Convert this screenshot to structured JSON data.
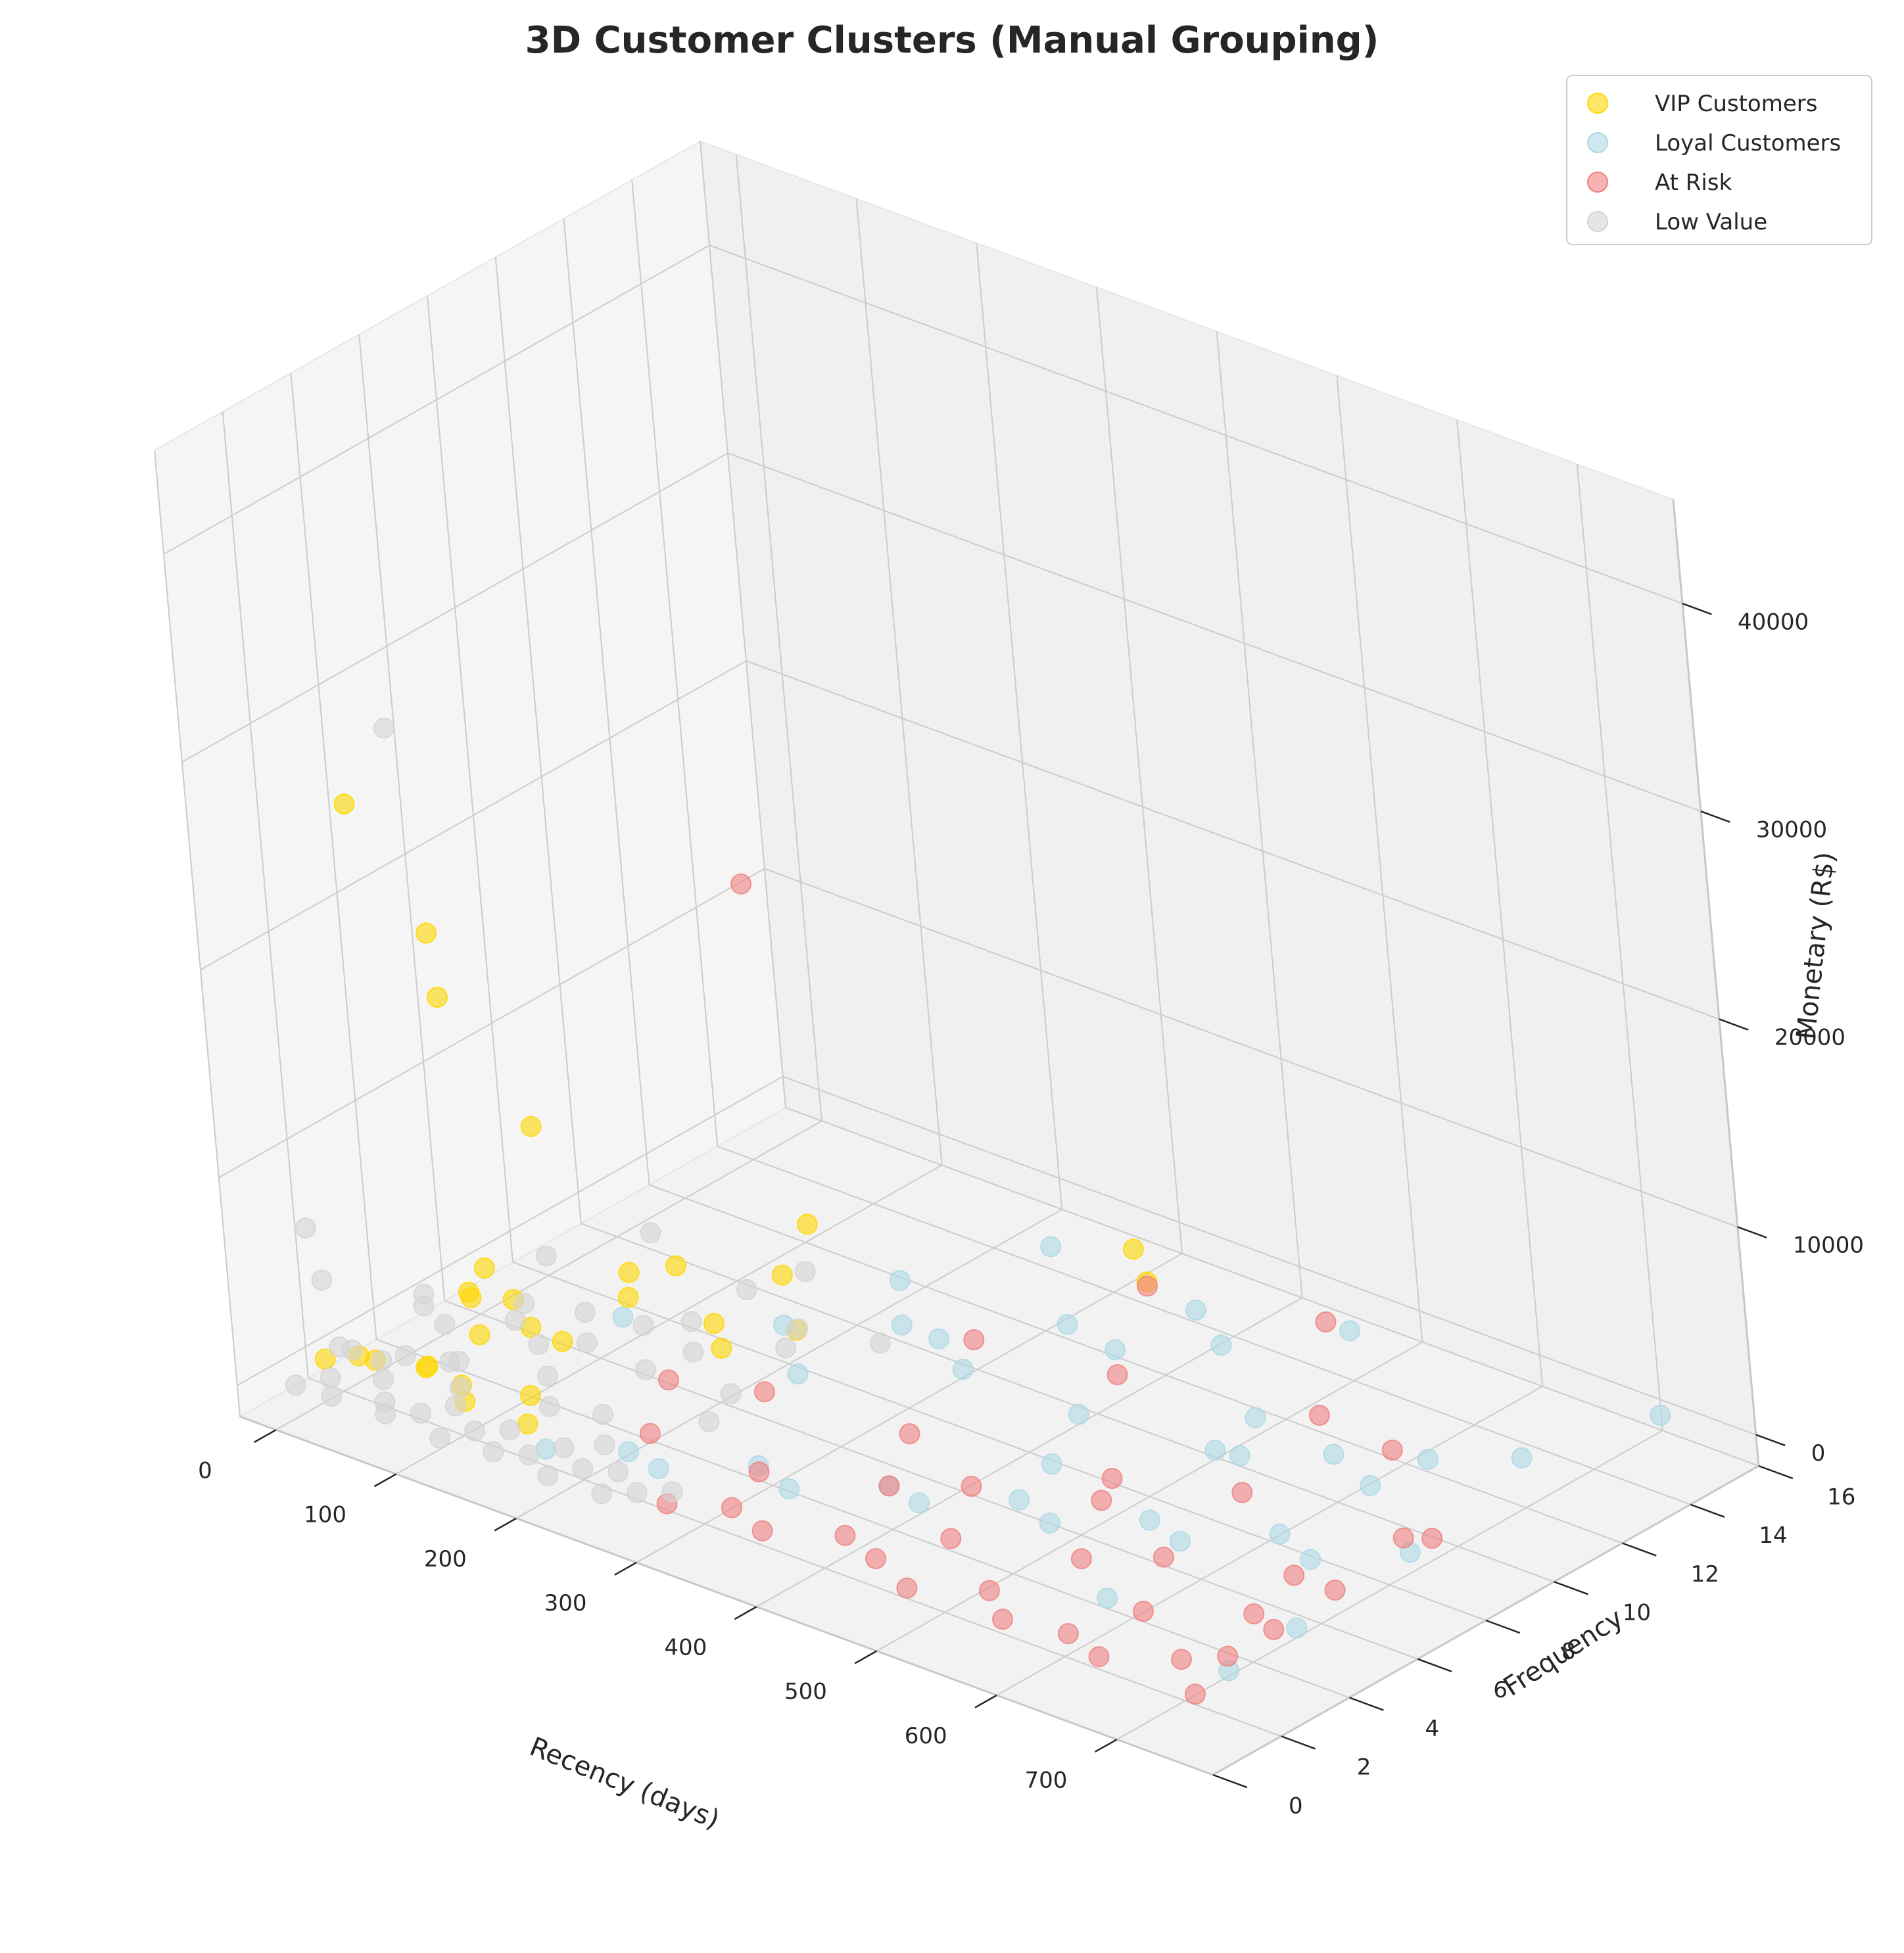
{
  "chart_data": {
    "type": "scatter",
    "projection": "3d",
    "title": "3D Customer Clusters (Manual Grouping)",
    "xlabel": "Recency (days)",
    "ylabel": "Frequency",
    "zlabel": "Monetary (R$)",
    "xlim": [
      -30,
      780
    ],
    "ylim": [
      0,
      16
    ],
    "zlim": [
      -1500,
      45000
    ],
    "x_ticks": [
      "0",
      "100",
      "200",
      "300",
      "400",
      "500",
      "600",
      "700"
    ],
    "y_ticks": [
      "0",
      "2",
      "4",
      "6",
      "8",
      "10",
      "12",
      "14",
      "16"
    ],
    "z_ticks": [
      "0",
      "10000",
      "20000",
      "30000",
      "40000"
    ],
    "grid": true,
    "legend_position": "top-right",
    "series": [
      {
        "name": "VIP Customers",
        "color": "#FFD700",
        "points": [
          [
            20,
            0.9,
            1500
          ],
          [
            40,
            1.2,
            1800
          ],
          [
            60,
            1.0,
            2200
          ],
          [
            80,
            1.8,
            1600
          ],
          [
            100,
            1.1,
            2600
          ],
          [
            120,
            1.4,
            1900
          ],
          [
            140,
            0.8,
            2100
          ],
          [
            160,
            2.0,
            1700
          ],
          [
            180,
            1.2,
            1500
          ],
          [
            90,
            3.0,
            2200
          ],
          [
            130,
            4.0,
            1800
          ],
          [
            60,
            5.0,
            1400
          ],
          [
            200,
            6.0,
            2300
          ],
          [
            100,
            7.0,
            1700
          ],
          [
            150,
            2.5,
            4300
          ],
          [
            110,
            8.0,
            1300
          ],
          [
            220,
            5.5,
            2000
          ],
          [
            70,
            3.5,
            3100
          ],
          [
            170,
            9.0,
            1200
          ],
          [
            240,
            7.0,
            1900
          ],
          [
            130,
            2.0,
            7200
          ],
          [
            150,
            3.0,
            13500
          ],
          [
            110,
            2.0,
            19800
          ],
          [
            130,
            1.5,
            6500
          ],
          [
            320,
            14.0,
            1000
          ],
          [
            360,
            13.0,
            1200
          ],
          [
            60,
            1.5,
            28500
          ],
          [
            90,
            2.5,
            22000
          ],
          [
            190,
            4.0,
            5200
          ],
          [
            180,
            9.5,
            3400
          ]
        ]
      },
      {
        "name": "Loyal Customers",
        "color": "#ADD8E6",
        "points": [
          [
            200,
            1.0,
            900
          ],
          [
            240,
            2.0,
            700
          ],
          [
            280,
            1.5,
            1200
          ],
          [
            320,
            3.0,
            800
          ],
          [
            360,
            2.5,
            1000
          ],
          [
            400,
            4.0,
            600
          ],
          [
            440,
            3.5,
            1100
          ],
          [
            480,
            5.0,
            700
          ],
          [
            520,
            4.5,
            900
          ],
          [
            560,
            6.0,
            500
          ],
          [
            600,
            5.5,
            800
          ],
          [
            640,
            7.0,
            600
          ],
          [
            680,
            6.5,
            700
          ],
          [
            720,
            8.0,
            500
          ],
          [
            300,
            9.0,
            900
          ],
          [
            350,
            11.0,
            800
          ],
          [
            400,
            13.0,
            700
          ],
          [
            450,
            12.0,
            1000
          ],
          [
            500,
            14.0,
            900
          ],
          [
            550,
            9.0,
            600
          ],
          [
            600,
            10.0,
            800
          ],
          [
            650,
            11.0,
            700
          ],
          [
            700,
            12.0,
            900
          ],
          [
            740,
            2.0,
            800
          ],
          [
            740,
            4.0,
            1000
          ],
          [
            730,
            15.0,
            800
          ],
          [
            260,
            6.0,
            3500
          ],
          [
            330,
            4.0,
            4500
          ],
          [
            230,
            2.5,
            6500
          ],
          [
            300,
            8.0,
            2500
          ],
          [
            420,
            10.0,
            2000
          ],
          [
            240,
            10.0,
            1500
          ],
          [
            280,
            13.0,
            1200
          ],
          [
            380,
            7.0,
            3000
          ],
          [
            480,
            6.0,
            1500
          ],
          [
            560,
            8.0,
            2000
          ],
          [
            660,
            9.0,
            1500
          ],
          [
            610,
            3.0,
            600
          ],
          [
            520,
            10.5,
            400
          ],
          [
            430,
            8.5,
            500
          ]
        ]
      },
      {
        "name": "At Risk",
        "color": "#F08080",
        "points": [
          [
            300,
            1.0,
            400
          ],
          [
            340,
            1.5,
            600
          ],
          [
            380,
            1.0,
            800
          ],
          [
            420,
            2.0,
            500
          ],
          [
            460,
            1.5,
            700
          ],
          [
            500,
            1.0,
            600
          ],
          [
            540,
            2.0,
            400
          ],
          [
            580,
            1.0,
            800
          ],
          [
            620,
            1.5,
            500
          ],
          [
            660,
            1.0,
            700
          ],
          [
            700,
            2.0,
            500
          ],
          [
            740,
            1.0,
            600
          ],
          [
            320,
            3.0,
            500
          ],
          [
            400,
            4.0,
            600
          ],
          [
            480,
            3.0,
            700
          ],
          [
            560,
            4.0,
            500
          ],
          [
            640,
            3.0,
            600
          ],
          [
            720,
            4.0,
            500
          ],
          [
            360,
            6.0,
            400
          ],
          [
            440,
            5.0,
            500
          ],
          [
            520,
            6.0,
            600
          ],
          [
            600,
            5.0,
            500
          ],
          [
            680,
            6.0,
            400
          ],
          [
            500,
            7.0,
            300
          ],
          [
            580,
            8.0,
            400
          ],
          [
            740,
            2.0,
            1500
          ],
          [
            735,
            3.0,
            2500
          ],
          [
            745,
            5.0,
            2000
          ],
          [
            740,
            8.0,
            1600
          ],
          [
            700,
            8.5,
            300
          ],
          [
            620,
            11.0,
            500
          ],
          [
            260,
            2.0,
            2000
          ],
          [
            300,
            4.0,
            3000
          ],
          [
            280,
            2.0,
            5000
          ],
          [
            330,
            9.0,
            1500
          ],
          [
            360,
            13.0,
            1000
          ],
          [
            480,
            14.0,
            900
          ],
          [
            380,
            2.0,
            31000
          ],
          [
            420,
            10.0,
            800
          ],
          [
            560,
            11.0,
            900
          ]
        ]
      },
      {
        "name": "Low Value",
        "color": "#D3D3D3",
        "points": [
          [
            5,
            0.5,
            300
          ],
          [
            20,
            1.0,
            500
          ],
          [
            35,
            0.5,
            400
          ],
          [
            50,
            1.5,
            600
          ],
          [
            65,
            1.0,
            300
          ],
          [
            80,
            0.5,
            500
          ],
          [
            95,
            1.0,
            400
          ],
          [
            110,
            1.5,
            600
          ],
          [
            125,
            0.5,
            300
          ],
          [
            140,
            1.0,
            500
          ],
          [
            155,
            1.5,
            400
          ],
          [
            170,
            0.5,
            600
          ],
          [
            185,
            1.0,
            300
          ],
          [
            200,
            1.5,
            500
          ],
          [
            215,
            0.5,
            400
          ],
          [
            230,
            1.0,
            600
          ],
          [
            245,
            1.5,
            300
          ],
          [
            260,
            0.5,
            500
          ],
          [
            275,
            1.0,
            400
          ],
          [
            290,
            1.5,
            300
          ],
          [
            10,
            2.0,
            700
          ],
          [
            40,
            2.5,
            600
          ],
          [
            70,
            3.0,
            500
          ],
          [
            100,
            2.0,
            800
          ],
          [
            130,
            3.5,
            600
          ],
          [
            160,
            2.5,
            700
          ],
          [
            190,
            3.0,
            500
          ],
          [
            220,
            2.0,
            600
          ],
          [
            250,
            4.0,
            500
          ],
          [
            30,
            4.0,
            500
          ],
          [
            60,
            5.0,
            400
          ],
          [
            90,
            6.0,
            500
          ],
          [
            120,
            5.0,
            600
          ],
          [
            150,
            7.0,
            400
          ],
          [
            180,
            6.0,
            500
          ],
          [
            210,
            8.0,
            400
          ],
          [
            240,
            5.0,
            700
          ],
          [
            45,
            3.0,
            3200
          ],
          [
            75,
            2.0,
            4200
          ],
          [
            100,
            4.0,
            3000
          ],
          [
            30,
            1.0,
            2200
          ],
          [
            50,
            1.5,
            1500
          ],
          [
            140,
            3.0,
            2800
          ],
          [
            20,
            1.0,
            5200
          ],
          [
            170,
            5.0,
            2500
          ],
          [
            200,
            7.0,
            3000
          ],
          [
            190,
            9.0,
            1800
          ],
          [
            130,
            0.8,
            3800
          ],
          [
            10,
            1.0,
            7500
          ],
          [
            230,
            3.0,
            3500
          ],
          [
            100,
            1.5,
            33000
          ],
          [
            260,
            6.0,
            2400
          ],
          [
            280,
            8.0,
            1200
          ],
          [
            60,
            9.0,
            900
          ],
          [
            30,
            7.0,
            1000
          ]
        ]
      }
    ]
  },
  "legend": {
    "items": [
      {
        "label": "VIP Customers",
        "color": "#FFD700"
      },
      {
        "label": "Loyal Customers",
        "color": "#ADD8E6"
      },
      {
        "label": "At Risk",
        "color": "#F08080"
      },
      {
        "label": "Low Value",
        "color": "#D3D3D3"
      }
    ]
  }
}
